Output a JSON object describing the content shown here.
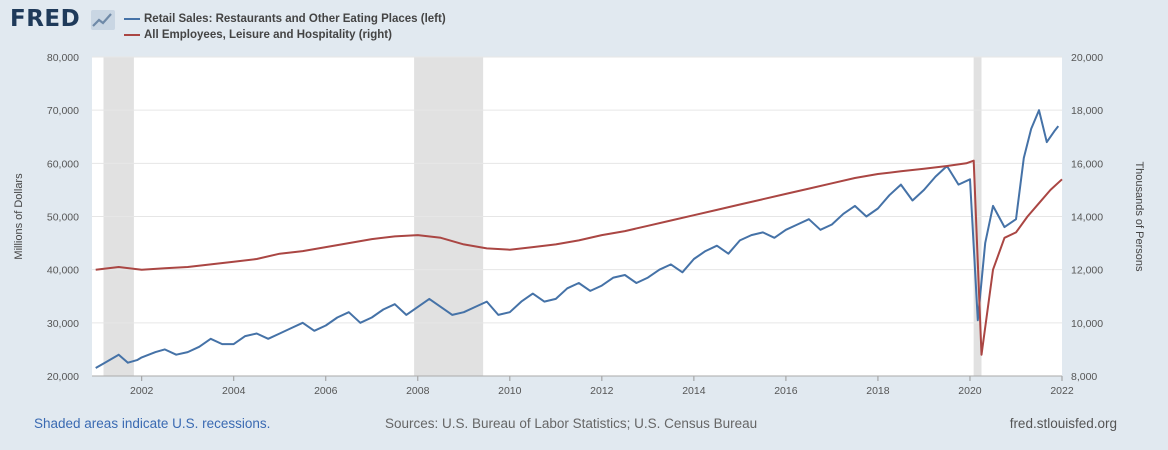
{
  "header": {
    "logo_text": "FRED",
    "logo_icon": "line-chart-icon"
  },
  "legend": [
    {
      "label": "Retail Sales: Restaurants and Other Eating Places (left)",
      "color": "#4572a7"
    },
    {
      "label": "All Employees, Leisure and Hospitality (right)",
      "color": "#aa4643"
    }
  ],
  "footer": {
    "recessions_note": "Shaded areas indicate U.S. recessions.",
    "sources": "Sources: U.S. Bureau of Labor Statistics; U.S. Census Bureau",
    "site": "fred.stlouisfed.org"
  },
  "colors": {
    "background": "#e1e9f0",
    "plot_background": "#ffffff",
    "recession_shade": "#e1e1e1",
    "grid": "#e6e6e6"
  },
  "chart_data": {
    "type": "line",
    "x_range": [
      2000.92,
      2022.0
    ],
    "x_ticks": [
      "2002",
      "2004",
      "2006",
      "2008",
      "2010",
      "2012",
      "2014",
      "2016",
      "2018",
      "2020",
      "2022"
    ],
    "y_left": {
      "label": "Millions of Dollars",
      "range": [
        20000,
        80000
      ],
      "ticks": [
        "20,000",
        "30,000",
        "40,000",
        "50,000",
        "60,000",
        "70,000",
        "80,000"
      ]
    },
    "y_right": {
      "label": "Thousands of Persons",
      "range": [
        8000,
        20000
      ],
      "ticks": [
        "8,000",
        "10,000",
        "12,000",
        "14,000",
        "16,000",
        "18,000",
        "20,000"
      ]
    },
    "grid": true,
    "legend_position": "top-left",
    "recessions": [
      [
        2001.17,
        2001.83
      ],
      [
        2007.92,
        2009.42
      ],
      [
        2020.08,
        2020.25
      ]
    ],
    "series": [
      {
        "name": "Retail Sales: Restaurants and Other Eating Places (left)",
        "axis": "left",
        "color": "#4572a7",
        "x": [
          2001.0,
          2001.2,
          2001.5,
          2001.7,
          2001.9,
          2002.0,
          2002.3,
          2002.5,
          2002.75,
          2003.0,
          2003.25,
          2003.5,
          2003.75,
          2004.0,
          2004.25,
          2004.5,
          2004.75,
          2005.0,
          2005.25,
          2005.5,
          2005.75,
          2006.0,
          2006.25,
          2006.5,
          2006.75,
          2007.0,
          2007.25,
          2007.5,
          2007.75,
          2008.0,
          2008.25,
          2008.5,
          2008.75,
          2009.0,
          2009.25,
          2009.5,
          2009.75,
          2010.0,
          2010.25,
          2010.5,
          2010.75,
          2011.0,
          2011.25,
          2011.5,
          2011.75,
          2012.0,
          2012.25,
          2012.5,
          2012.75,
          2013.0,
          2013.25,
          2013.5,
          2013.75,
          2014.0,
          2014.25,
          2014.5,
          2014.75,
          2015.0,
          2015.25,
          2015.5,
          2015.75,
          2016.0,
          2016.25,
          2016.5,
          2016.75,
          2017.0,
          2017.25,
          2017.5,
          2017.75,
          2018.0,
          2018.25,
          2018.5,
          2018.75,
          2019.0,
          2019.25,
          2019.5,
          2019.75,
          2020.0,
          2020.17,
          2020.33,
          2020.5,
          2020.75,
          2021.0,
          2021.17,
          2021.33,
          2021.5,
          2021.67,
          2021.83,
          2021.92
        ],
        "y": [
          21500,
          22500,
          24000,
          22500,
          23000,
          23500,
          24500,
          25000,
          24000,
          24500,
          25500,
          27000,
          26000,
          26000,
          27500,
          28000,
          27000,
          28000,
          29000,
          30000,
          28500,
          29500,
          31000,
          32000,
          30000,
          31000,
          32500,
          33500,
          31500,
          33000,
          34500,
          33000,
          31500,
          32000,
          33000,
          34000,
          31500,
          32000,
          34000,
          35500,
          34000,
          34500,
          36500,
          37500,
          36000,
          37000,
          38500,
          39000,
          37500,
          38500,
          40000,
          41000,
          39500,
          42000,
          43500,
          44500,
          43000,
          45500,
          46500,
          47000,
          46000,
          47500,
          48500,
          49500,
          47500,
          48500,
          50500,
          52000,
          50000,
          51500,
          54000,
          56000,
          53000,
          55000,
          57500,
          59500,
          56000,
          57000,
          30500,
          45000,
          52000,
          48000,
          49500,
          61000,
          66500,
          70000,
          64000,
          66000,
          67000
        ]
      },
      {
        "name": "All Employees, Leisure and Hospitality (right)",
        "axis": "right",
        "color": "#aa4643",
        "x": [
          2001.0,
          2001.5,
          2002.0,
          2002.5,
          2003.0,
          2003.5,
          2004.0,
          2004.5,
          2005.0,
          2005.5,
          2006.0,
          2006.5,
          2007.0,
          2007.5,
          2008.0,
          2008.5,
          2009.0,
          2009.5,
          2010.0,
          2010.5,
          2011.0,
          2011.5,
          2012.0,
          2012.5,
          2013.0,
          2013.5,
          2014.0,
          2014.5,
          2015.0,
          2015.5,
          2016.0,
          2016.5,
          2017.0,
          2017.5,
          2018.0,
          2018.5,
          2019.0,
          2019.5,
          2019.92,
          2020.08,
          2020.25,
          2020.5,
          2020.75,
          2021.0,
          2021.25,
          2021.5,
          2021.75,
          2022.0
        ],
        "y": [
          12000,
          12100,
          12000,
          12050,
          12100,
          12200,
          12300,
          12400,
          12600,
          12700,
          12850,
          13000,
          13150,
          13250,
          13300,
          13200,
          12950,
          12800,
          12750,
          12850,
          12950,
          13100,
          13300,
          13450,
          13650,
          13850,
          14050,
          14250,
          14450,
          14650,
          14850,
          15050,
          15250,
          15450,
          15600,
          15700,
          15800,
          15900,
          16000,
          16100,
          8800,
          12000,
          13200,
          13400,
          14000,
          14500,
          15000,
          15400
        ]
      }
    ]
  }
}
